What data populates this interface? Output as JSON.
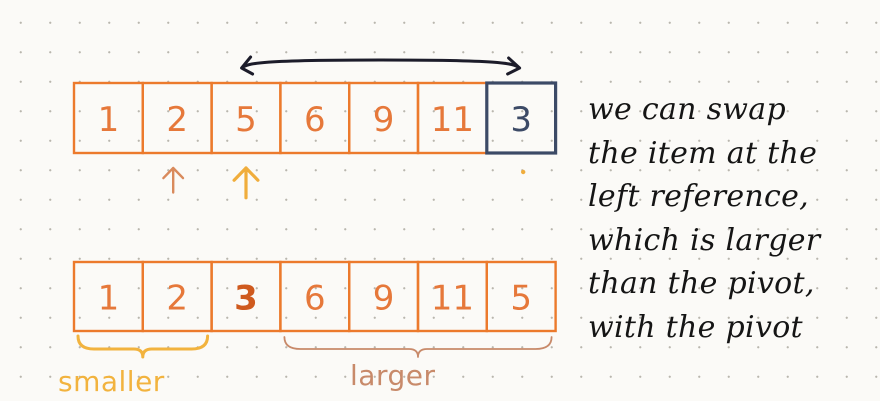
{
  "diagram": {
    "top_row": {
      "cells": [
        "1",
        "2",
        "5",
        "6",
        "9",
        "11",
        "3"
      ],
      "pivot_index": 6,
      "swap_from_index": 2,
      "swap_to_index": 6,
      "left_reference_index": 2,
      "previous_reference_index": 1
    },
    "bottom_row": {
      "cells": [
        "1",
        "2",
        "3",
        "6",
        "9",
        "11",
        "5"
      ],
      "pivot_index": 2
    },
    "groups": [
      {
        "label": "smaller",
        "from_index": 0,
        "to_index": 1,
        "color": "#f2b33e"
      },
      {
        "label": "larger",
        "from_index": 3,
        "to_index": 6,
        "color": "#c88a6a"
      }
    ],
    "colors": {
      "cell_border": "#ec7a2c",
      "cell_text": "#e6783a",
      "pivot_border": "#3c4a66",
      "pivot_text": "#3c4a66",
      "swapped_pivot_text": "#cf5a1e",
      "swap_arrow": "#1c1c2a",
      "current_ref_arrow": "#f0ad3c",
      "previous_ref_arrow": "#d98a5c"
    }
  },
  "note": {
    "lines": [
      "we can swap",
      "the item at the",
      "left reference,",
      "which is larger",
      "than the pivot,",
      "with the pivot"
    ]
  }
}
